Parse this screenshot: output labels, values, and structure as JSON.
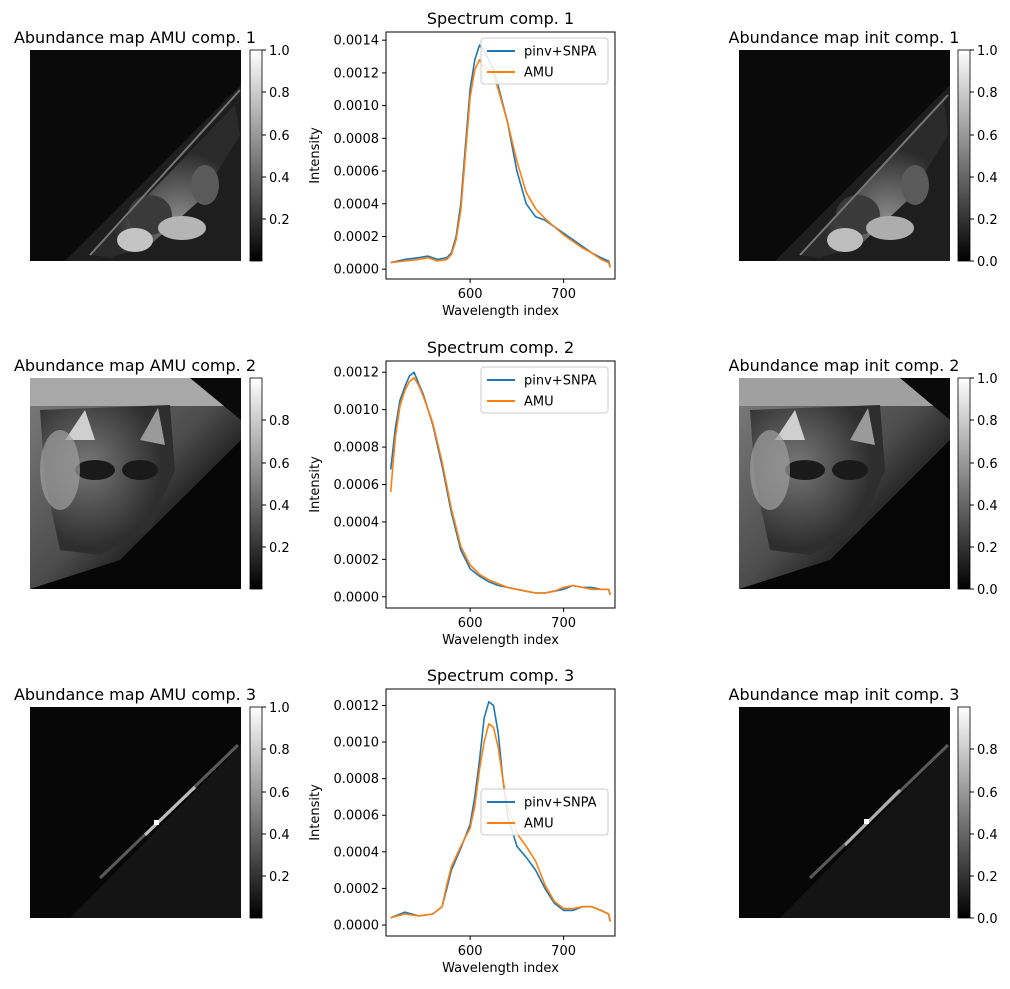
{
  "figure": {
    "colorbar_ticks_a": [
      "1.0",
      "0.8",
      "0.6",
      "0.4",
      "0.2"
    ],
    "colorbar_ticks_b": [
      "0.8",
      "0.6",
      "0.4",
      "0.2"
    ],
    "colorbar_ticks_c": [
      "1.0",
      "0.8",
      "0.6",
      "0.4",
      "0.2",
      "0.0"
    ],
    "colorbar_ticks_d": [
      "0.8",
      "0.6",
      "0.4",
      "0.2",
      "0.0"
    ]
  },
  "rows": [
    {
      "amu_title": "Abundance map AMU comp. 1",
      "init_title": "Abundance map init comp. 1",
      "spectrum_title": "Spectrum comp. 1",
      "xlabel": "Wavelength index",
      "ylabel": "Intensity",
      "yticks": [
        "0.0000",
        "0.0002",
        "0.0004",
        "0.0006",
        "0.0008",
        "0.0010",
        "0.0012",
        "0.0014"
      ],
      "xticks": [
        "600",
        "700"
      ],
      "legend": [
        "pinv+SNPA",
        "AMU"
      ]
    },
    {
      "amu_title": "Abundance map AMU comp. 2",
      "init_title": "Abundance map init comp. 2",
      "spectrum_title": "Spectrum comp. 2",
      "xlabel": "Wavelength index",
      "ylabel": "Intensity",
      "yticks": [
        "0.0000",
        "0.0002",
        "0.0004",
        "0.0006",
        "0.0008",
        "0.0010",
        "0.0012"
      ],
      "xticks": [
        "600",
        "700"
      ],
      "legend": [
        "pinv+SNPA",
        "AMU"
      ]
    },
    {
      "amu_title": "Abundance map AMU comp. 3",
      "init_title": "Abundance map init comp. 3",
      "spectrum_title": "Spectrum comp. 3",
      "xlabel": "Wavelength index",
      "ylabel": "Intensity",
      "yticks": [
        "0.0000",
        "0.0002",
        "0.0004",
        "0.0006",
        "0.0008",
        "0.0010",
        "0.0012"
      ],
      "xticks": [
        "600",
        "700"
      ],
      "legend": [
        "pinv+SNPA",
        "AMU"
      ]
    }
  ],
  "chart_data": [
    {
      "type": "line",
      "title": "Spectrum comp. 1",
      "xlabel": "Wavelength index",
      "ylabel": "Intensity",
      "xlim": [
        510,
        755
      ],
      "ylim": [
        -6e-05,
        0.00145
      ],
      "legend_position": "top-right",
      "series": [
        {
          "name": "pinv+SNPA",
          "color": "#1f77b4",
          "x": [
            515,
            530,
            545,
            555,
            565,
            575,
            580,
            585,
            590,
            595,
            600,
            605,
            610,
            615,
            620,
            625,
            630,
            640,
            650,
            660,
            670,
            680,
            690,
            700,
            710,
            720,
            730,
            740,
            748,
            750
          ],
          "y": [
            4e-05,
            6e-05,
            7e-05,
            8e-05,
            6e-05,
            7e-05,
            0.0001,
            0.0002,
            0.0004,
            0.00075,
            0.0011,
            0.00128,
            0.00137,
            0.00133,
            0.00128,
            0.00122,
            0.00112,
            0.0009,
            0.0006,
            0.0004,
            0.00032,
            0.0003,
            0.00026,
            0.00022,
            0.00018,
            0.00014,
            0.0001,
            7e-05,
            5e-05,
            1e-05
          ]
        },
        {
          "name": "AMU",
          "color": "#ff7f0e",
          "x": [
            515,
            530,
            545,
            555,
            565,
            575,
            580,
            585,
            590,
            595,
            600,
            605,
            610,
            615,
            620,
            625,
            630,
            640,
            650,
            660,
            670,
            680,
            690,
            700,
            710,
            720,
            730,
            740,
            748,
            750
          ],
          "y": [
            4e-05,
            5e-05,
            6e-05,
            7e-05,
            5e-05,
            6e-05,
            9e-05,
            0.00018,
            0.00036,
            0.0007,
            0.00105,
            0.00122,
            0.00128,
            0.00123,
            0.00122,
            0.00119,
            0.0011,
            0.0009,
            0.00066,
            0.00047,
            0.00037,
            0.00031,
            0.00026,
            0.00021,
            0.00017,
            0.00013,
            0.0001,
            6e-05,
            4e-05,
            1e-05
          ]
        }
      ]
    },
    {
      "type": "line",
      "title": "Spectrum comp. 2",
      "xlabel": "Wavelength index",
      "ylabel": "Intensity",
      "xlim": [
        510,
        755
      ],
      "ylim": [
        -6e-05,
        0.00126
      ],
      "legend_position": "top-right",
      "series": [
        {
          "name": "pinv+SNPA",
          "color": "#1f77b4",
          "x": [
            515,
            520,
            525,
            530,
            535,
            540,
            545,
            550,
            555,
            560,
            570,
            580,
            590,
            600,
            610,
            620,
            630,
            640,
            650,
            660,
            670,
            680,
            690,
            700,
            710,
            720,
            730,
            740,
            748,
            750
          ],
          "y": [
            0.00068,
            0.0009,
            0.00105,
            0.00112,
            0.00118,
            0.0012,
            0.00114,
            0.00108,
            0.001,
            0.00092,
            0.0007,
            0.00045,
            0.00025,
            0.00015,
            0.00011,
            8e-05,
            6e-05,
            5e-05,
            4e-05,
            3e-05,
            2e-05,
            2e-05,
            3e-05,
            4e-05,
            6e-05,
            5e-05,
            5e-05,
            4e-05,
            4e-05,
            1e-05
          ]
        },
        {
          "name": "AMU",
          "color": "#ff7f0e",
          "x": [
            515,
            520,
            525,
            530,
            535,
            540,
            545,
            550,
            555,
            560,
            570,
            580,
            590,
            600,
            610,
            620,
            630,
            640,
            650,
            660,
            670,
            680,
            690,
            700,
            710,
            720,
            730,
            740,
            748,
            750
          ],
          "y": [
            0.00056,
            0.00085,
            0.00102,
            0.0011,
            0.00115,
            0.00117,
            0.00113,
            0.00107,
            0.001,
            0.00093,
            0.00072,
            0.00047,
            0.00027,
            0.00017,
            0.00012,
            9e-05,
            7e-05,
            5e-05,
            4e-05,
            3e-05,
            2e-05,
            2e-05,
            3e-05,
            5e-05,
            6e-05,
            5e-05,
            4e-05,
            4e-05,
            4e-05,
            1e-05
          ]
        }
      ]
    },
    {
      "type": "line",
      "title": "Spectrum comp. 3",
      "xlabel": "Wavelength index",
      "ylabel": "Intensity",
      "xlim": [
        510,
        755
      ],
      "ylim": [
        -6e-05,
        0.00129
      ],
      "legend_position": "center-right",
      "series": [
        {
          "name": "pinv+SNPA",
          "color": "#1f77b4",
          "x": [
            515,
            530,
            545,
            560,
            570,
            575,
            580,
            590,
            600,
            605,
            610,
            615,
            620,
            625,
            630,
            635,
            640,
            650,
            660,
            670,
            680,
            690,
            700,
            710,
            720,
            730,
            740,
            748,
            750
          ],
          "y": [
            4e-05,
            7e-05,
            5e-05,
            6e-05,
            0.0001,
            0.0002,
            0.0003,
            0.00042,
            0.00055,
            0.0007,
            0.0009,
            0.00113,
            0.00122,
            0.0012,
            0.00105,
            0.0008,
            0.0006,
            0.00043,
            0.00037,
            0.0003,
            0.0002,
            0.00012,
            8e-05,
            8e-05,
            0.0001,
            0.0001,
            8e-05,
            6e-05,
            2e-05
          ]
        },
        {
          "name": "AMU",
          "color": "#ff7f0e",
          "x": [
            515,
            530,
            545,
            560,
            570,
            575,
            580,
            590,
            600,
            605,
            610,
            615,
            620,
            625,
            630,
            635,
            640,
            650,
            660,
            670,
            680,
            690,
            700,
            710,
            720,
            730,
            740,
            748,
            750
          ],
          "y": [
            4e-05,
            6e-05,
            5e-05,
            6e-05,
            0.0001,
            0.00022,
            0.00032,
            0.00043,
            0.00053,
            0.00065,
            0.00085,
            0.001,
            0.0011,
            0.00108,
            0.00097,
            0.0008,
            0.00065,
            0.0005,
            0.00043,
            0.00035,
            0.00022,
            0.00013,
            9e-05,
            9e-05,
            0.0001,
            0.0001,
            8e-05,
            6e-05,
            2e-05
          ]
        }
      ]
    }
  ]
}
